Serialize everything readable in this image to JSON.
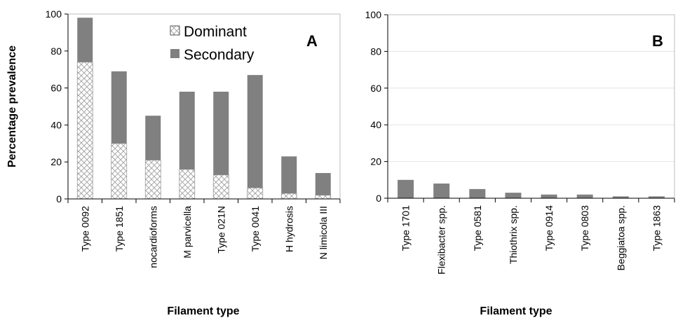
{
  "ylabel": "Percentage prevalence",
  "chart_data": [
    {
      "type": "bar",
      "stacked": true,
      "panel_label": "A",
      "xlabel": "Filament type",
      "ylim": [
        0,
        100
      ],
      "yticks": [
        "0",
        "20",
        "40",
        "60",
        "80",
        "100"
      ],
      "categories": [
        "Type 0092",
        "Type 1851",
        "nocardioforms",
        "M parvicella",
        "Type 021N",
        "Type 0041",
        "H hydrosis",
        "N limicola III"
      ],
      "series": [
        {
          "name": "Dominant",
          "color": "#ffffff",
          "pattern": "crosshatch",
          "values": [
            74,
            30,
            21,
            16,
            13,
            6,
            3,
            2
          ]
        },
        {
          "name": "Secondary",
          "color": "#808080",
          "values": [
            24,
            39,
            24,
            42,
            45,
            61,
            20,
            12
          ]
        }
      ],
      "legend": "top-right",
      "grid": false
    },
    {
      "type": "bar",
      "panel_label": "B",
      "xlabel": "Filament type",
      "ylim": [
        0,
        100
      ],
      "yticks": [
        "0",
        "20",
        "40",
        "60",
        "80",
        "100"
      ],
      "categories": [
        "Type 1701",
        "Flexibacter spp.",
        "Type 0581",
        "Thiothrix spp.",
        "Type 0914",
        "Type 0803",
        "Beggiatoa spp.",
        "Type 1863"
      ],
      "series": [
        {
          "name": "",
          "color": "#808080",
          "values": [
            10,
            8,
            5,
            3,
            2,
            2,
            1,
            1
          ]
        }
      ],
      "grid": true
    }
  ]
}
